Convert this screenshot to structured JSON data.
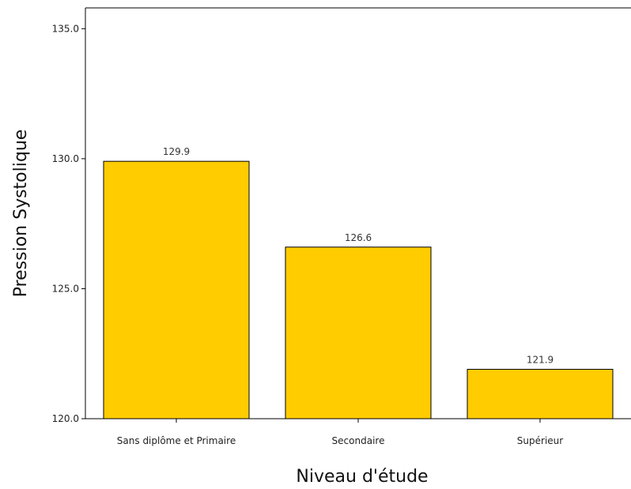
{
  "chart_data": {
    "type": "bar",
    "categories": [
      "Sans diplôme et Primaire",
      "Secondaire",
      "Supérieur"
    ],
    "values": [
      129.9,
      126.6,
      121.9
    ],
    "data_labels": [
      "129.9",
      "126.6",
      "121.9"
    ],
    "xlabel": "Niveau d'étude",
    "ylabel": "Pression Systolique",
    "ylim": [
      120,
      135.8
    ],
    "yticks": [
      120,
      125,
      130,
      135
    ],
    "ytick_labels": [
      "120.0",
      "125.0",
      "130.0",
      "135.0"
    ],
    "bar_color": "#FFCC00",
    "grid": false
  }
}
